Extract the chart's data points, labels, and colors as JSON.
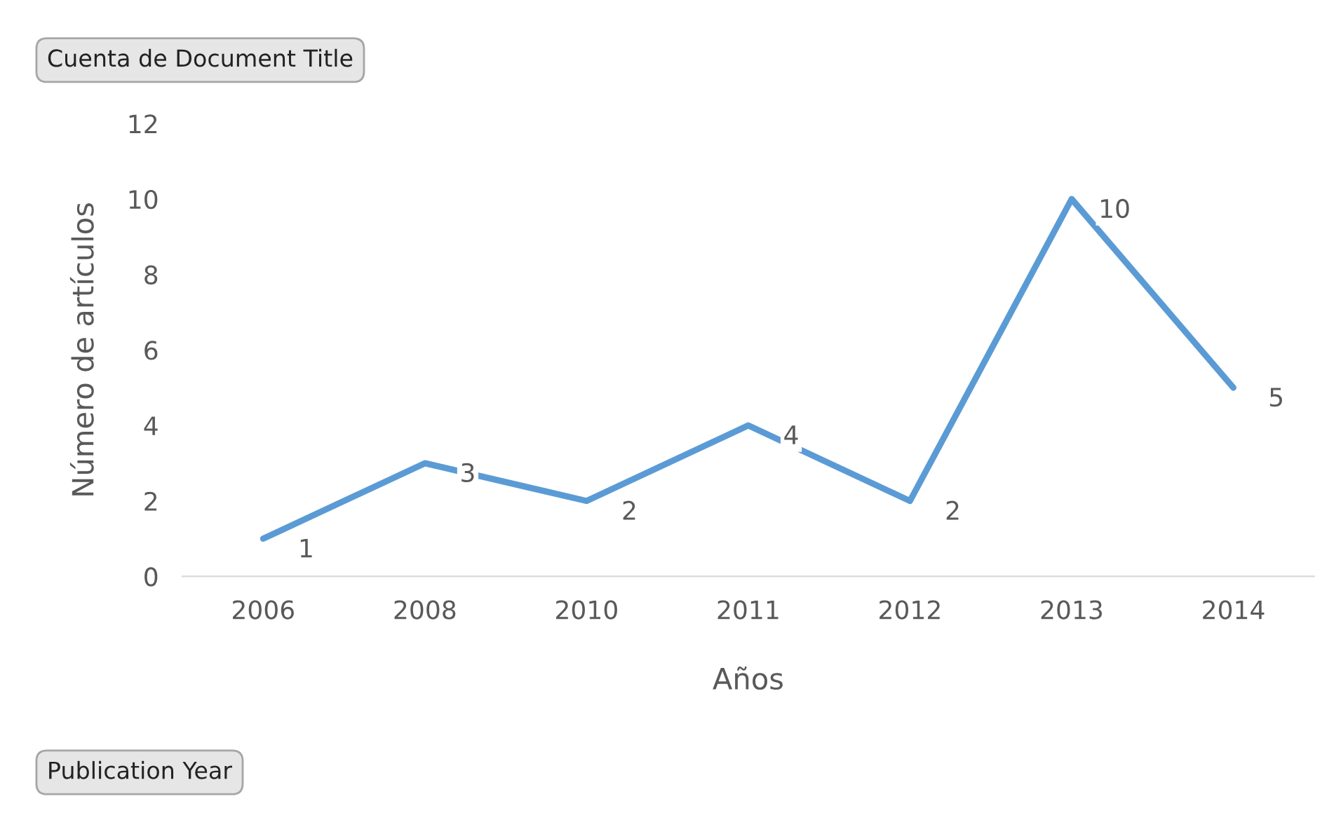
{
  "chart_data": {
    "type": "line",
    "xlabel": "Años",
    "ylabel": "Número de artículos",
    "categories": [
      "2006",
      "2008",
      "2010",
      "2011",
      "2012",
      "2013",
      "2014"
    ],
    "series": [
      {
        "color": "#5b9bd5",
        "values": [
          1,
          3,
          2,
          4,
          2,
          10,
          5
        ]
      }
    ],
    "ylim": [
      0,
      12
    ],
    "yticks": [
      0,
      2,
      4,
      6,
      8,
      10,
      12
    ],
    "grid": false,
    "legend": false,
    "marker": "none",
    "line_style": "solid",
    "data_labels": true,
    "annotations": [
      "Cuenta de Document Title",
      "Publication Year"
    ]
  }
}
